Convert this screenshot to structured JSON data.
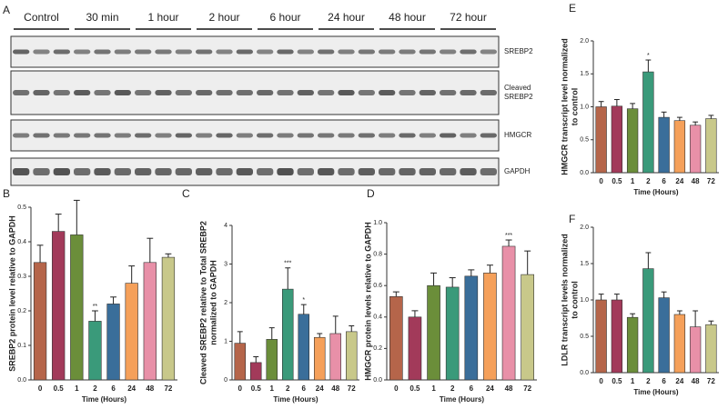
{
  "blot": {
    "panel": "A",
    "time_labels": [
      "Control",
      "30 min",
      "1 hour",
      "2 hour",
      "6 hour",
      "24 hour",
      "48 hour",
      "72 hour"
    ],
    "rows": [
      [
        "SREBP2"
      ],
      [
        "Cleaved",
        "SREBP2"
      ],
      [
        "HMGCR"
      ],
      [
        "GAPDH"
      ]
    ]
  },
  "chart_data": [
    {
      "type": "bar",
      "panel": "B",
      "title": [
        "SREBP2 protein level relative to GAPDH"
      ],
      "x_label": "Time (Hours)",
      "categories": [
        "0",
        "0.5",
        "1",
        "2",
        "6",
        "24",
        "48",
        "72"
      ],
      "values": [
        0.34,
        0.43,
        0.42,
        0.17,
        0.22,
        0.28,
        0.34,
        0.355
      ],
      "errors": [
        0.05,
        0.05,
        0.1,
        0.03,
        0.02,
        0.05,
        0.07,
        0.01
      ],
      "significance": [
        null,
        null,
        null,
        "**",
        null,
        null,
        null,
        null
      ],
      "colors": [
        "#b5654a",
        "#a23a5a",
        "#6b8e3a",
        "#3a9a7a",
        "#3a6e9a",
        "#f5a05a",
        "#e890a8",
        "#c8c88a"
      ],
      "ylim": [
        0,
        0.5
      ],
      "yticks": [
        {
          "value": 0,
          "label": "0.0"
        },
        0.1,
        0.2,
        0.3,
        0.4,
        0.5
      ]
    },
    {
      "type": "bar",
      "panel": "C",
      "title": [
        "Cleaved SREBP2 relative to Total SREBP2",
        "normalized to GAPDH"
      ],
      "x_label": "Time (Hours)",
      "categories": [
        "0",
        "0.5",
        "1",
        "2",
        "6",
        "24",
        "48",
        "72"
      ],
      "values": [
        0.95,
        0.45,
        1.05,
        2.35,
        1.7,
        1.1,
        1.2,
        1.25
      ],
      "errors": [
        0.3,
        0.15,
        0.3,
        0.55,
        0.25,
        0.1,
        0.45,
        0.15
      ],
      "significance": [
        null,
        null,
        null,
        "***",
        "*",
        null,
        null,
        null
      ],
      "colors": [
        "#b5654a",
        "#a23a5a",
        "#6b8e3a",
        "#3a9a7a",
        "#3a6e9a",
        "#f5a05a",
        "#e890a8",
        "#c8c88a"
      ],
      "ylim": [
        0,
        4
      ],
      "yticks": [
        0,
        1,
        2,
        3,
        4
      ]
    },
    {
      "type": "bar",
      "panel": "D",
      "title": [
        "HMGCR protein levels relative to GAPDH"
      ],
      "x_label": "Time (Hours)",
      "categories": [
        "0",
        "0.5",
        "1",
        "2",
        "6",
        "24",
        "48",
        "72"
      ],
      "values": [
        0.53,
        0.4,
        0.6,
        0.59,
        0.66,
        0.68,
        0.85,
        0.67
      ],
      "errors": [
        0.03,
        0.04,
        0.08,
        0.06,
        0.04,
        0.05,
        0.04,
        0.15
      ],
      "significance": [
        null,
        null,
        null,
        null,
        null,
        null,
        "***",
        null
      ],
      "colors": [
        "#b5654a",
        "#a23a5a",
        "#6b8e3a",
        "#3a9a7a",
        "#3a6e9a",
        "#f5a05a",
        "#e890a8",
        "#c8c88a"
      ],
      "ylim": [
        0,
        1
      ],
      "yticks": [
        {
          "value": 0,
          "label": "0.0"
        },
        0.2,
        0.4,
        0.6,
        0.8,
        {
          "value": 1,
          "label": "1.0"
        }
      ]
    },
    {
      "type": "bar",
      "panel": "E",
      "title": [
        "HMGCR transcript level normalized",
        "to control"
      ],
      "x_label": "Time (Hours)",
      "categories": [
        "0",
        "0.5",
        "1",
        "2",
        "6",
        "24",
        "48",
        "72"
      ],
      "values": [
        1.0,
        1.01,
        0.97,
        1.53,
        0.84,
        0.79,
        0.72,
        0.82
      ],
      "errors": [
        0.08,
        0.1,
        0.08,
        0.18,
        0.08,
        0.05,
        0.05,
        0.05
      ],
      "significance": [
        null,
        null,
        null,
        "*",
        null,
        null,
        null,
        null
      ],
      "colors": [
        "#b5654a",
        "#a23a5a",
        "#6b8e3a",
        "#3a9a7a",
        "#3a6e9a",
        "#f5a05a",
        "#e890a8",
        "#c8c88a"
      ],
      "ylim": [
        0,
        2
      ],
      "yticks": [
        {
          "value": 0,
          "label": "0.0"
        },
        0.5,
        {
          "value": 1,
          "label": "1.0"
        },
        1.5,
        {
          "value": 2,
          "label": "2.0"
        }
      ]
    },
    {
      "type": "bar",
      "panel": "F",
      "title": [
        "LDLR transcript levels normalized",
        "to control"
      ],
      "x_label": "Time (Hours)",
      "categories": [
        "0",
        "0.5",
        "1",
        "2",
        "6",
        "24",
        "48",
        "72"
      ],
      "values": [
        1.0,
        1.0,
        0.76,
        1.43,
        1.03,
        0.8,
        0.63,
        0.66
      ],
      "errors": [
        0.08,
        0.08,
        0.05,
        0.22,
        0.08,
        0.05,
        0.22,
        0.05
      ],
      "significance": [
        null,
        null,
        null,
        null,
        null,
        null,
        null,
        null
      ],
      "colors": [
        "#b5654a",
        "#a23a5a",
        "#6b8e3a",
        "#3a9a7a",
        "#3a6e9a",
        "#f5a05a",
        "#e890a8",
        "#c8c88a"
      ],
      "ylim": [
        0,
        2
      ],
      "yticks": [
        {
          "value": 0,
          "label": "0.0"
        },
        0.5,
        {
          "value": 1,
          "label": "1.0"
        },
        1.5,
        {
          "value": 2,
          "label": "2.0"
        }
      ]
    }
  ]
}
